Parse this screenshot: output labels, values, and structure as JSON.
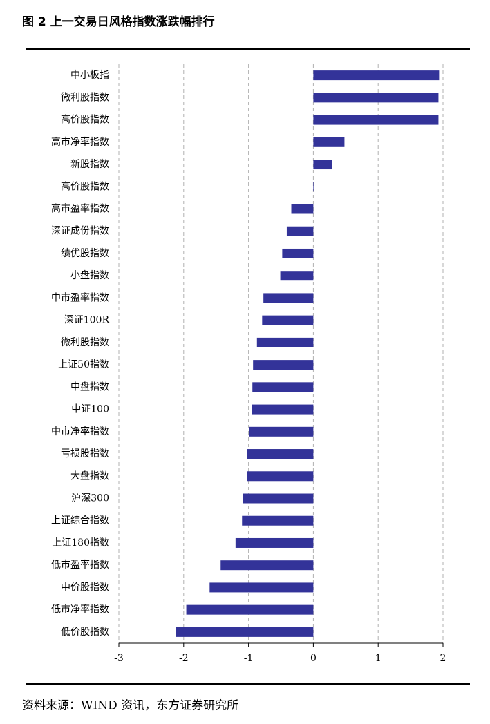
{
  "chart_data": {
    "type": "barh",
    "title": "图 2 上一交易日风格指数涨跌幅排行",
    "categories": [
      "中小板指",
      "微利股指数",
      "高价股指数",
      "高市净率指数",
      "新股指数",
      "高价股指数",
      "高市盈率指数",
      "深证成份指数",
      "绩优股指数",
      "小盘指数",
      "中市盈率指数",
      "深证100R",
      "微利股指数",
      "上证50指数",
      "中盘指数",
      "中证100",
      "中市净率指数",
      "亏损股指数",
      "大盘指数",
      "沪深300",
      "上证综合指数",
      "上证180指数",
      "低市盈率指数",
      "中价股指数",
      "低市净率指数",
      "低价股指数"
    ],
    "values": [
      1.94,
      1.93,
      1.93,
      0.48,
      0.29,
      0.01,
      -0.34,
      -0.41,
      -0.48,
      -0.51,
      -0.77,
      -0.79,
      -0.87,
      -0.93,
      -0.94,
      -0.95,
      -0.99,
      -1.02,
      -1.02,
      -1.09,
      -1.1,
      -1.2,
      -1.43,
      -1.6,
      -1.96,
      -2.12
    ],
    "color": "#333399",
    "xlim": [
      -3,
      2
    ],
    "xticks": [
      -3,
      -2,
      -1,
      0,
      1,
      2
    ],
    "grid": true,
    "source": "资料来源：WIND 资讯，东方证券研究所"
  }
}
